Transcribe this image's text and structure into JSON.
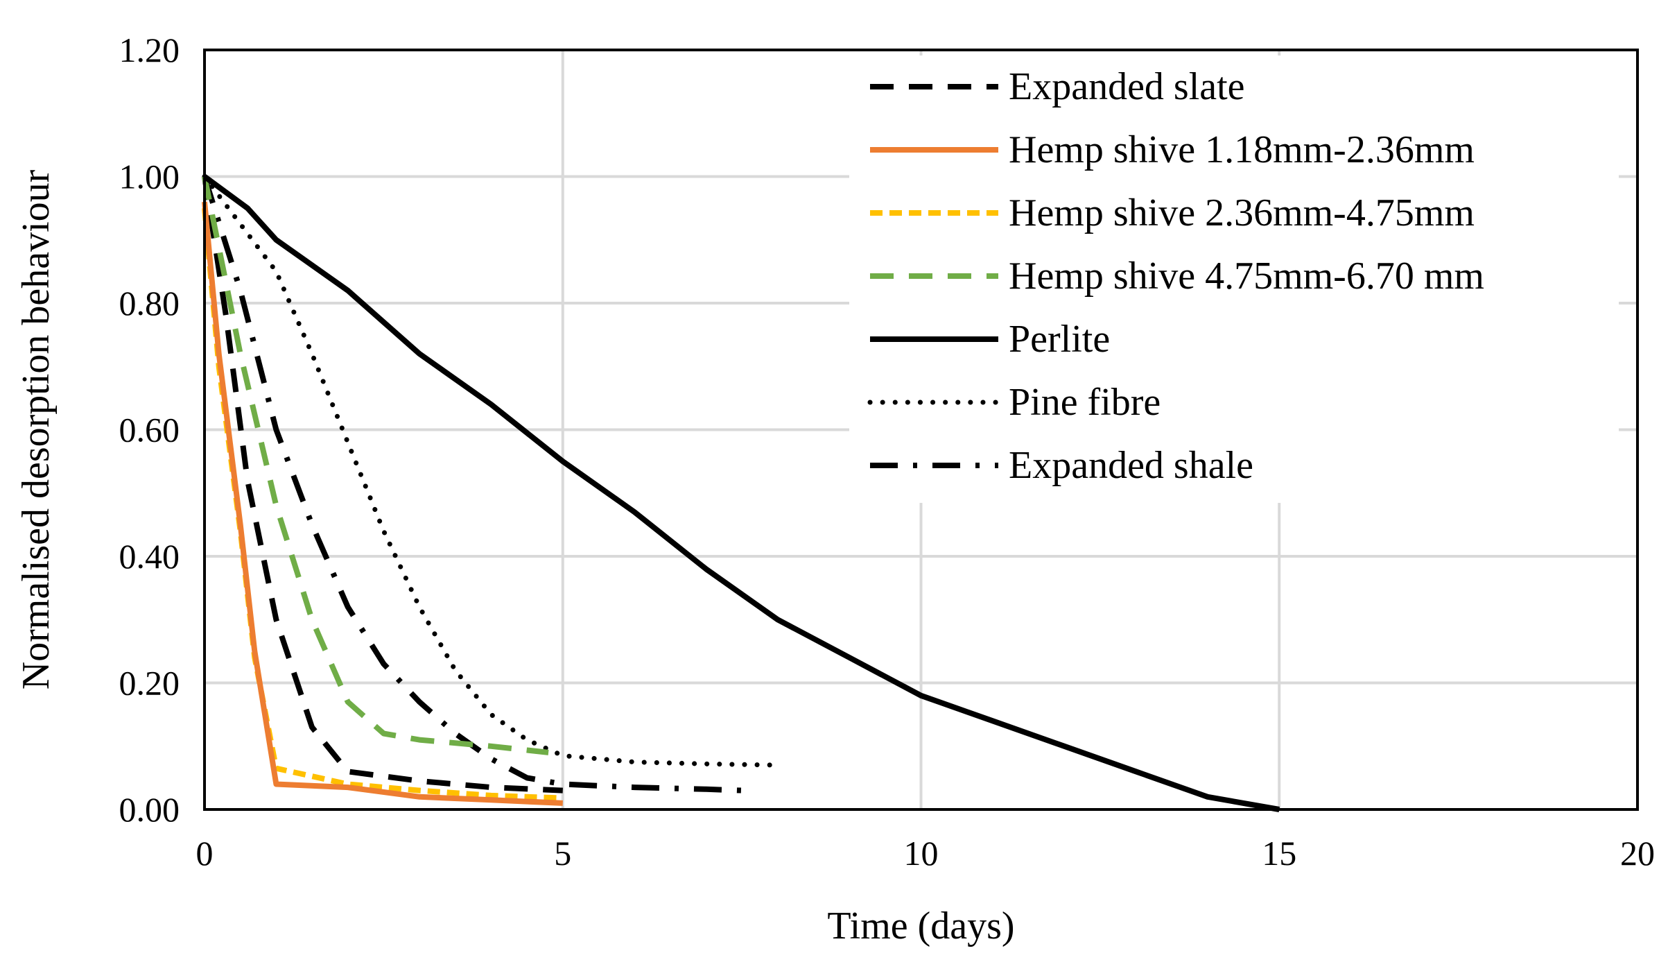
{
  "chart_data": {
    "type": "line",
    "title": "",
    "xlabel": "Time (days)",
    "ylabel": "Normalised desorption behaviour",
    "xlim": [
      0,
      20
    ],
    "ylim": [
      0,
      1.2
    ],
    "xticks": [
      0,
      5,
      10,
      15,
      20
    ],
    "yticks": [
      0,
      0.2,
      0.4,
      0.6,
      0.8,
      1.0,
      1.2
    ],
    "xtick_labels": [
      "0",
      "5",
      "10",
      "15",
      "20"
    ],
    "ytick_labels": [
      "0.00",
      "0.20",
      "0.40",
      "0.60",
      "0.80",
      "1.00",
      "1.20"
    ],
    "grid": true,
    "legend_position": "top-right",
    "series": [
      {
        "name": "Expanded slate",
        "color": "#000000",
        "dash": "long-dash",
        "x": [
          0,
          0.3,
          0.6,
          1,
          1.5,
          2,
          3,
          4,
          5
        ],
        "y": [
          1.0,
          0.78,
          0.52,
          0.3,
          0.13,
          0.06,
          0.045,
          0.035,
          0.03
        ]
      },
      {
        "name": "Hemp shive 1.18mm-2.36mm",
        "color": "#ED7D31",
        "dash": "solid",
        "x": [
          0,
          0.2,
          0.5,
          0.7,
          1,
          2,
          3,
          4,
          5
        ],
        "y": [
          0.96,
          0.72,
          0.45,
          0.25,
          0.04,
          0.035,
          0.02,
          0.015,
          0.01
        ]
      },
      {
        "name": "Hemp shive 2.36mm-4.75mm",
        "color": "#FFC000",
        "dash": "short-dash",
        "x": [
          0,
          0.2,
          0.5,
          0.7,
          1,
          2,
          3,
          4,
          5
        ],
        "y": [
          0.95,
          0.7,
          0.44,
          0.24,
          0.065,
          0.04,
          0.03,
          0.022,
          0.018
        ]
      },
      {
        "name": "Hemp shive 4.75mm-6.70 mm",
        "color": "#70AD47",
        "dash": "long-dash",
        "x": [
          0,
          0.5,
          1,
          1.5,
          2,
          2.5,
          3,
          4,
          4.8
        ],
        "y": [
          1.0,
          0.72,
          0.48,
          0.3,
          0.17,
          0.12,
          0.11,
          0.1,
          0.09
        ]
      },
      {
        "name": "Perlite",
        "color": "#000000",
        "dash": "solid",
        "x": [
          0,
          0.6,
          1,
          2,
          3,
          4,
          5,
          6,
          7,
          8,
          9,
          10,
          11,
          12,
          13,
          14,
          15
        ],
        "y": [
          1.0,
          0.95,
          0.9,
          0.82,
          0.72,
          0.64,
          0.55,
          0.47,
          0.38,
          0.3,
          0.24,
          0.18,
          0.14,
          0.1,
          0.06,
          0.02,
          0.0
        ]
      },
      {
        "name": "Pine fibre",
        "color": "#000000",
        "dash": "dotted",
        "x": [
          0,
          1,
          1.5,
          2,
          2.5,
          3,
          3.5,
          4,
          4.5,
          5,
          6,
          7,
          8
        ],
        "y": [
          1.0,
          0.85,
          0.72,
          0.58,
          0.44,
          0.32,
          0.22,
          0.15,
          0.11,
          0.085,
          0.075,
          0.072,
          0.07
        ]
      },
      {
        "name": "Expanded shale",
        "color": "#000000",
        "dash": "dash-dot",
        "x": [
          0,
          0.5,
          1,
          1.5,
          2,
          2.5,
          3,
          3.5,
          4,
          4.5,
          5,
          6,
          7,
          7.5
        ],
        "y": [
          1.0,
          0.82,
          0.6,
          0.45,
          0.32,
          0.23,
          0.17,
          0.12,
          0.08,
          0.05,
          0.04,
          0.035,
          0.032,
          0.03
        ]
      }
    ]
  }
}
